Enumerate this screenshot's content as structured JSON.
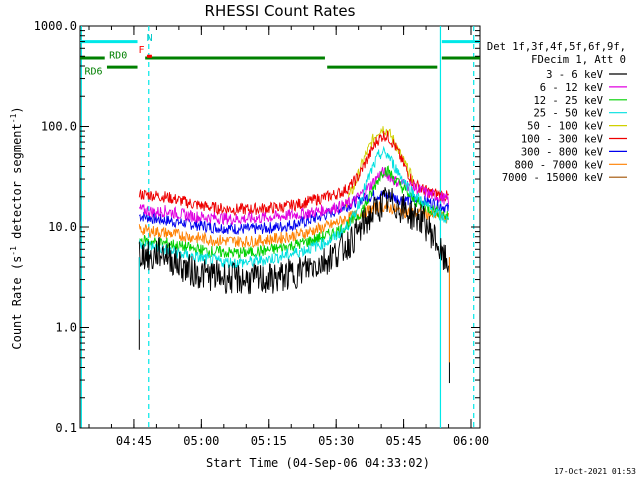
{
  "chart_data": {
    "type": "line",
    "title": "RHESSI Count Rates",
    "xlabel": "Start Time (04-Sep-06 04:33:02)",
    "ylabel_main": "Count Rate (s",
    "ylabel_sup1": "-1",
    "ylabel_mid": " detector segment",
    "ylabel_sup2": "-1",
    "ylabel_end": ")",
    "y_scale": "log",
    "ylim": [
      0.1,
      1000
    ],
    "xlim_minutes": [
      33,
      122
    ],
    "x_ticks": [
      {
        "label": "04:45",
        "minute": 45
      },
      {
        "label": "05:00",
        "minute": 60
      },
      {
        "label": "05:15",
        "minute": 75
      },
      {
        "label": "05:30",
        "minute": 90
      },
      {
        "label": "05:45",
        "minute": 105
      },
      {
        "label": "06:00",
        "minute": 120
      }
    ],
    "y_ticks": [
      {
        "label": "0.1",
        "value": 0.1
      },
      {
        "label": "1.0",
        "value": 1
      },
      {
        "label": "10.0",
        "value": 10
      },
      {
        "label": "100.0",
        "value": 100
      },
      {
        "label": "1000.0",
        "value": 1000
      }
    ],
    "legend_header": [
      "Det 1f,3f,4f,5f,6f,9f,",
      "FDecim 1, Att 0"
    ],
    "series": [
      {
        "name": "3 - 6 keV",
        "color": "#000000",
        "points": [
          [
            46.2,
            5.5
          ],
          [
            48,
            5.2
          ],
          [
            49,
            4.6
          ],
          [
            50,
            5.6
          ],
          [
            52,
            5.5
          ],
          [
            54,
            4.5
          ],
          [
            56,
            4.0
          ],
          [
            58,
            3.6
          ],
          [
            60,
            3.4
          ],
          [
            63,
            3.3
          ],
          [
            66,
            3.1
          ],
          [
            69,
            3.0
          ],
          [
            72,
            3.0
          ],
          [
            75,
            3.0
          ],
          [
            78,
            3.2
          ],
          [
            81,
            3.5
          ],
          [
            84,
            4.0
          ],
          [
            87,
            4.5
          ],
          [
            90,
            5.5
          ],
          [
            93,
            7.0
          ],
          [
            95,
            9.0
          ],
          [
            97,
            12
          ],
          [
            99,
            15
          ],
          [
            101,
            18
          ],
          [
            103,
            17
          ],
          [
            105,
            15
          ],
          [
            107,
            13
          ],
          [
            109,
            12
          ],
          [
            111,
            9
          ],
          [
            112.5,
            7
          ],
          [
            113.5,
            5
          ],
          [
            114.5,
            4.5
          ],
          [
            115,
            4.3
          ]
        ]
      },
      {
        "name": "6 - 12 keV",
        "color": "#e000e0",
        "points": [
          [
            46.2,
            15
          ],
          [
            48,
            14.5
          ],
          [
            50,
            14
          ],
          [
            52,
            14.5
          ],
          [
            55,
            13.5
          ],
          [
            58,
            12.8
          ],
          [
            61,
            12.5
          ],
          [
            64,
            12.3
          ],
          [
            67,
            12.0
          ],
          [
            70,
            12.1
          ],
          [
            73,
            12.3
          ],
          [
            76,
            12.6
          ],
          [
            79,
            13.0
          ],
          [
            82,
            13.5
          ],
          [
            85,
            14
          ],
          [
            88,
            15
          ],
          [
            91,
            16
          ],
          [
            94,
            18
          ],
          [
            96,
            22
          ],
          [
            98,
            27
          ],
          [
            99.5,
            33
          ],
          [
            100.5,
            35
          ],
          [
            101.5,
            33
          ],
          [
            103,
            29
          ],
          [
            105,
            27
          ],
          [
            107,
            25
          ],
          [
            109,
            23
          ],
          [
            111,
            21
          ],
          [
            113,
            20
          ],
          [
            115,
            18.5
          ]
        ]
      },
      {
        "name": "12 - 25 keV",
        "color": "#00d000",
        "points": [
          [
            46.2,
            7.5
          ],
          [
            48,
            7.2
          ],
          [
            50,
            7.0
          ],
          [
            53,
            6.8
          ],
          [
            56,
            6.3
          ],
          [
            59,
            6.0
          ],
          [
            62,
            5.7
          ],
          [
            65,
            5.6
          ],
          [
            68,
            5.5
          ],
          [
            71,
            5.6
          ],
          [
            74,
            5.8
          ],
          [
            77,
            6.1
          ],
          [
            80,
            6.5
          ],
          [
            83,
            7.0
          ],
          [
            86,
            7.7
          ],
          [
            89,
            8.6
          ],
          [
            92,
            10
          ],
          [
            95,
            13
          ],
          [
            97,
            18
          ],
          [
            99,
            28
          ],
          [
            100.5,
            37
          ],
          [
            101.5,
            36
          ],
          [
            103,
            30
          ],
          [
            105,
            24
          ],
          [
            107,
            19
          ],
          [
            109,
            16.5
          ],
          [
            111,
            15
          ],
          [
            113,
            14
          ],
          [
            115,
            12.5
          ]
        ]
      },
      {
        "name": "25 - 50 keV",
        "color": "#00e0e0",
        "points": [
          [
            46.2,
            7.0
          ],
          [
            48,
            6.6
          ],
          [
            50,
            6.2
          ],
          [
            53,
            5.8
          ],
          [
            56,
            5.3
          ],
          [
            59,
            5.0
          ],
          [
            62,
            4.7
          ],
          [
            65,
            4.5
          ],
          [
            68,
            4.4
          ],
          [
            71,
            4.5
          ],
          [
            74,
            4.7
          ],
          [
            77,
            5.0
          ],
          [
            80,
            5.4
          ],
          [
            83,
            5.9
          ],
          [
            86,
            6.6
          ],
          [
            89,
            7.5
          ],
          [
            92,
            9.5
          ],
          [
            94,
            13
          ],
          [
            96,
            22
          ],
          [
            98,
            38
          ],
          [
            99.5,
            52
          ],
          [
            100.5,
            55
          ],
          [
            101.5,
            52
          ],
          [
            103,
            40
          ],
          [
            105,
            29
          ],
          [
            107,
            22
          ],
          [
            109,
            18
          ],
          [
            111,
            15
          ],
          [
            113,
            13
          ],
          [
            115,
            11.5
          ]
        ]
      },
      {
        "name": "50 - 100 keV",
        "color": "#d0d000",
        "points": [
          [
            92,
            17
          ],
          [
            94,
            25
          ],
          [
            96,
            45
          ],
          [
            98,
            72
          ],
          [
            99.5,
            92
          ],
          [
            100.5,
            96
          ],
          [
            101.5,
            90
          ],
          [
            103,
            70
          ],
          [
            105,
            45
          ],
          [
            107,
            30
          ]
        ]
      },
      {
        "name": "100 - 300 keV",
        "color": "#ee0000",
        "points": [
          [
            46.2,
            21
          ],
          [
            48,
            21
          ],
          [
            50,
            20.5
          ],
          [
            52,
            20
          ],
          [
            55,
            18.5
          ],
          [
            58,
            17
          ],
          [
            61,
            16
          ],
          [
            64,
            15.3
          ],
          [
            67,
            15
          ],
          [
            70,
            15
          ],
          [
            73,
            15.2
          ],
          [
            76,
            15.5
          ],
          [
            79,
            16
          ],
          [
            82,
            17
          ],
          [
            85,
            18.5
          ],
          [
            88,
            20
          ],
          [
            91,
            22
          ],
          [
            93,
            25
          ],
          [
            95,
            32
          ],
          [
            97,
            48
          ],
          [
            99,
            72
          ],
          [
            100.5,
            82
          ],
          [
            101.5,
            80
          ],
          [
            103,
            65
          ],
          [
            105,
            42
          ],
          [
            107,
            28
          ],
          [
            109,
            24
          ],
          [
            111,
            22
          ],
          [
            113,
            21
          ],
          [
            115,
            20
          ]
        ]
      },
      {
        "name": "300 - 800 keV",
        "color": "#0000ee",
        "points": [
          [
            46.2,
            13
          ],
          [
            48,
            12.5
          ],
          [
            50,
            12
          ],
          [
            53,
            11.5
          ],
          [
            56,
            11
          ],
          [
            59,
            10.5
          ],
          [
            62,
            10
          ],
          [
            65,
            9.8
          ],
          [
            68,
            9.6
          ],
          [
            71,
            9.5
          ],
          [
            74,
            9.7
          ],
          [
            77,
            10
          ],
          [
            80,
            10.5
          ],
          [
            83,
            11.3
          ],
          [
            86,
            12.5
          ],
          [
            89,
            14
          ],
          [
            92,
            16
          ],
          [
            95,
            18.5
          ],
          [
            98,
            20.5
          ],
          [
            100,
            21
          ],
          [
            102,
            20
          ],
          [
            104,
            19
          ],
          [
            106,
            18.5
          ],
          [
            108,
            18.5
          ],
          [
            110,
            18
          ],
          [
            112,
            17
          ],
          [
            114,
            16
          ],
          [
            115,
            15
          ]
        ]
      },
      {
        "name": "800 - 7000 keV",
        "color": "#ff8000",
        "points": [
          [
            46.2,
            9.5
          ],
          [
            48,
            9.2
          ],
          [
            50,
            9.0
          ],
          [
            53,
            8.6
          ],
          [
            56,
            8.2
          ],
          [
            59,
            7.8
          ],
          [
            62,
            7.5
          ],
          [
            65,
            7.3
          ],
          [
            68,
            7.2
          ],
          [
            71,
            7.2
          ],
          [
            74,
            7.4
          ],
          [
            77,
            7.7
          ],
          [
            80,
            8.1
          ],
          [
            83,
            8.7
          ],
          [
            86,
            9.5
          ],
          [
            89,
            10.5
          ],
          [
            92,
            12
          ],
          [
            95,
            13.5
          ],
          [
            98,
            15
          ],
          [
            100,
            16
          ],
          [
            102,
            15.5
          ],
          [
            104,
            14.5
          ],
          [
            106,
            14
          ],
          [
            108,
            13.8
          ],
          [
            110,
            13.5
          ],
          [
            112,
            13
          ],
          [
            114,
            12.5
          ],
          [
            115,
            12
          ]
        ]
      },
      {
        "name": "7000 - 15000 keV",
        "color": "#a05000",
        "points": []
      }
    ],
    "attenuator_bands": [
      {
        "label": "",
        "color": "#00e8e8",
        "y_rate": 700,
        "segments": [
          [
            33,
            45.8
          ],
          [
            113.5,
            122
          ]
        ]
      }
    ],
    "rd_bands": [
      {
        "color": "#008000",
        "y_rate": 480,
        "segments": [
          [
            33,
            38.5
          ],
          [
            47.5,
            87.5
          ],
          [
            113.5,
            122
          ]
        ]
      },
      {
        "color": "#008000",
        "y_rate": 390,
        "segments": [
          [
            39,
            45.8
          ],
          [
            88,
            112.5
          ]
        ]
      }
    ],
    "flag_labels": [
      {
        "text": "RD0",
        "color": "#008000",
        "minute": 41.5,
        "rate": 520
      },
      {
        "text": "RD6",
        "color": "#008000",
        "minute": 36,
        "rate": 360
      },
      {
        "text": "F",
        "color": "#ff0000",
        "minute": 46.7,
        "rate": 590
      },
      {
        "text": "N",
        "color": "#00c8c8",
        "minute": 48.5,
        "rate": 780
      }
    ],
    "markers": [
      {
        "type": "solid",
        "color": "#00e8e8",
        "minute": 33.3
      },
      {
        "type": "dashed",
        "color": "#00e8e8",
        "minute": 48.3
      },
      {
        "type": "solid",
        "color": "#00e8e8",
        "minute": 113.2
      },
      {
        "type": "dashed",
        "color": "#00e8e8",
        "minute": 120.6
      }
    ],
    "timestamp": "17-Oct-2021 01:53"
  }
}
